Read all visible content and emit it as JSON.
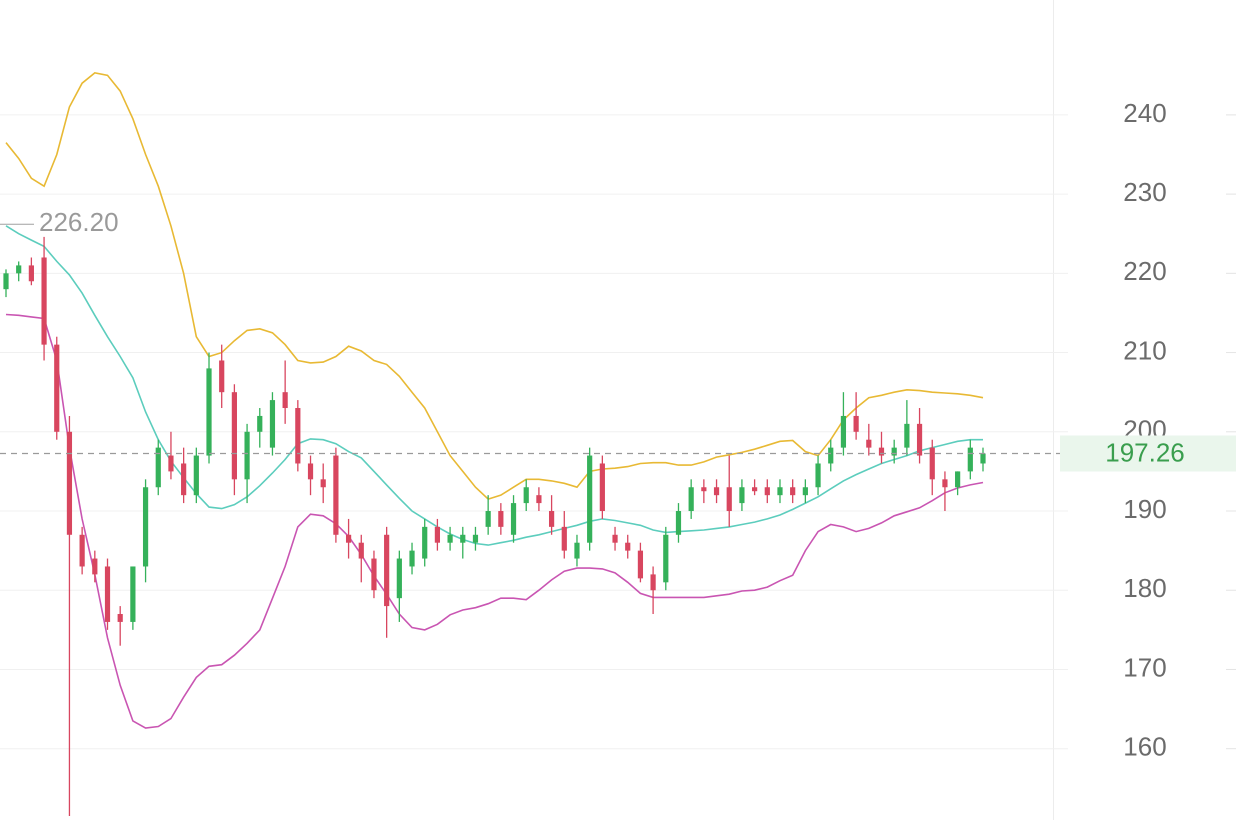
{
  "chart_data": {
    "type": "candlestick",
    "ylim": [
      151,
      254.5
    ],
    "yticks": [
      160,
      170,
      180,
      190,
      200,
      210,
      220,
      230,
      240
    ],
    "grid": true,
    "up_color": "#35b15a",
    "down_color": "#d8465f",
    "open": [
      218,
      220,
      221,
      222,
      211,
      200,
      187,
      184,
      183,
      177,
      176,
      183,
      193,
      197,
      196,
      192,
      197,
      209,
      205,
      194,
      200,
      198,
      205,
      203,
      196,
      194,
      197,
      187,
      186,
      184,
      187,
      179,
      183,
      184,
      188,
      186,
      186,
      186,
      188,
      190,
      187,
      191,
      192,
      190,
      188,
      184,
      186,
      196,
      187,
      186,
      185,
      182,
      181,
      187,
      190,
      193,
      193,
      193,
      191,
      193,
      193,
      192,
      193,
      192,
      193,
      196,
      198,
      202,
      199,
      198,
      197,
      198,
      201,
      198,
      194,
      193,
      195,
      196
    ],
    "high": [
      220.5,
      221.5,
      222,
      224.6,
      212,
      202,
      188,
      185,
      184,
      178,
      183,
      194,
      199,
      200,
      198,
      198,
      210,
      211,
      206,
      201,
      203,
      205,
      209,
      204,
      197,
      196,
      198,
      189,
      187,
      185,
      188,
      185,
      186,
      189,
      189,
      188,
      188,
      188,
      192,
      191,
      192,
      194,
      193,
      192,
      190,
      187,
      198,
      197,
      188,
      187,
      186,
      183,
      188,
      191,
      194,
      194,
      194,
      197,
      194,
      194,
      194,
      194,
      194,
      194,
      197,
      199,
      205,
      205,
      201,
      200,
      199,
      204,
      203,
      199,
      195,
      195,
      199,
      198
    ],
    "low": [
      217,
      219,
      218.5,
      209,
      199,
      151.5,
      182,
      181,
      175,
      173,
      175,
      181,
      192,
      194,
      191,
      191,
      196,
      203,
      192,
      191,
      198,
      197,
      201,
      195,
      192,
      191,
      186,
      184,
      181,
      179,
      174,
      176,
      182,
      183,
      185,
      185,
      184,
      185,
      187,
      187,
      186,
      190,
      190,
      187,
      184,
      183,
      185,
      189,
      185,
      184,
      181,
      177,
      180,
      186,
      189,
      191,
      191,
      188,
      190,
      192,
      191,
      191,
      191,
      191,
      192,
      195,
      197,
      199,
      197,
      196,
      196,
      197,
      196,
      192,
      190,
      192,
      194,
      195
    ],
    "close": [
      220,
      221,
      219,
      211,
      200,
      187,
      183,
      182,
      176,
      176,
      183,
      193,
      198,
      195,
      192,
      197,
      208,
      205,
      194,
      200,
      202,
      204,
      203,
      196,
      194,
      193,
      187,
      186,
      184,
      180,
      178,
      184,
      185,
      188,
      186,
      187,
      187,
      187,
      190,
      188,
      191,
      193,
      191,
      188,
      185,
      186,
      197,
      190,
      186,
      185,
      181.5,
      180,
      187,
      190,
      193,
      192.5,
      192,
      190,
      193,
      192.5,
      192,
      193,
      192,
      193,
      196,
      198,
      202,
      200,
      198,
      197,
      198,
      201,
      197,
      194,
      193,
      195,
      198,
      197.26
    ],
    "bands": [
      {
        "color": "#e8b934",
        "values": [
          236.5,
          234.5,
          232,
          231,
          235,
          241,
          244,
          245.3,
          245,
          243,
          239.5,
          235,
          231,
          226,
          220,
          212,
          209.5,
          210,
          211.5,
          212.8,
          213,
          212.5,
          211,
          209,
          208.7,
          208.8,
          209.5,
          210.8,
          210.2,
          209,
          208.5,
          207,
          205,
          203,
          200,
          197,
          195,
          193,
          191.5,
          192,
          193,
          194,
          194,
          193.8,
          193.5,
          193,
          195,
          195.3,
          195.4,
          195.6,
          196,
          196.1,
          196.1,
          195.8,
          195.8,
          196.2,
          196.8,
          197.1,
          197.4,
          197.8,
          198.3,
          198.8,
          198.9,
          197.5,
          197,
          199,
          201.5,
          203,
          204.3,
          204.6,
          205,
          205.3,
          205.2,
          205,
          204.9,
          204.8,
          204.6,
          204.3
        ]
      },
      {
        "color": "#5ccdbd",
        "values": [
          226,
          225,
          224.2,
          223.4,
          221.5,
          219.8,
          217.5,
          214.7,
          212,
          209.5,
          206.8,
          202.5,
          199,
          196.3,
          194.2,
          192.2,
          190.5,
          190.3,
          190.8,
          191.8,
          193.2,
          194.8,
          196.5,
          198.5,
          199.1,
          199,
          198.5,
          197.5,
          196.7,
          195,
          193.3,
          191.6,
          190,
          189,
          188,
          187.1,
          186.4,
          185.9,
          185.7,
          186,
          186.3,
          186.7,
          187,
          187.4,
          187.8,
          188.2,
          188.7,
          189,
          188.8,
          188.5,
          188.2,
          187.6,
          187.3,
          187.4,
          187.5,
          187.6,
          187.8,
          188,
          188.3,
          188.6,
          189,
          189.5,
          190.2,
          191,
          191.8,
          192.8,
          193.8,
          194.6,
          195.3,
          196,
          196.5,
          197,
          197.6,
          198,
          198.4,
          198.8,
          199,
          199
        ]
      },
      {
        "color": "#c955b2",
        "values": [
          214.8,
          214.7,
          214.5,
          214.3,
          209,
          198,
          189,
          182,
          174,
          168,
          163.5,
          162.6,
          162.8,
          163.8,
          166.5,
          169,
          170.4,
          170.6,
          171.8,
          173.3,
          175,
          179,
          183,
          188,
          189.6,
          189.4,
          188.4,
          186.8,
          184.5,
          181.8,
          179.5,
          177,
          175.3,
          175,
          175.7,
          176.9,
          177.5,
          177.8,
          178.3,
          179,
          179,
          178.8,
          180,
          181.3,
          182.4,
          182.8,
          182.8,
          182.7,
          182.2,
          181,
          179.6,
          179.1,
          179.1,
          179.1,
          179.1,
          179.1,
          179.3,
          179.5,
          179.9,
          180,
          180.4,
          181.2,
          181.9,
          185,
          187.4,
          188.3,
          188,
          187.4,
          187.8,
          188.5,
          189.4,
          189.9,
          190.4,
          191.3,
          192.3,
          192.9,
          193.3,
          193.6
        ]
      }
    ],
    "last_price": 197.26,
    "last_price_color": "#3a9e4e",
    "max_annotation": {
      "value": 226.2,
      "label": "226.20"
    }
  }
}
